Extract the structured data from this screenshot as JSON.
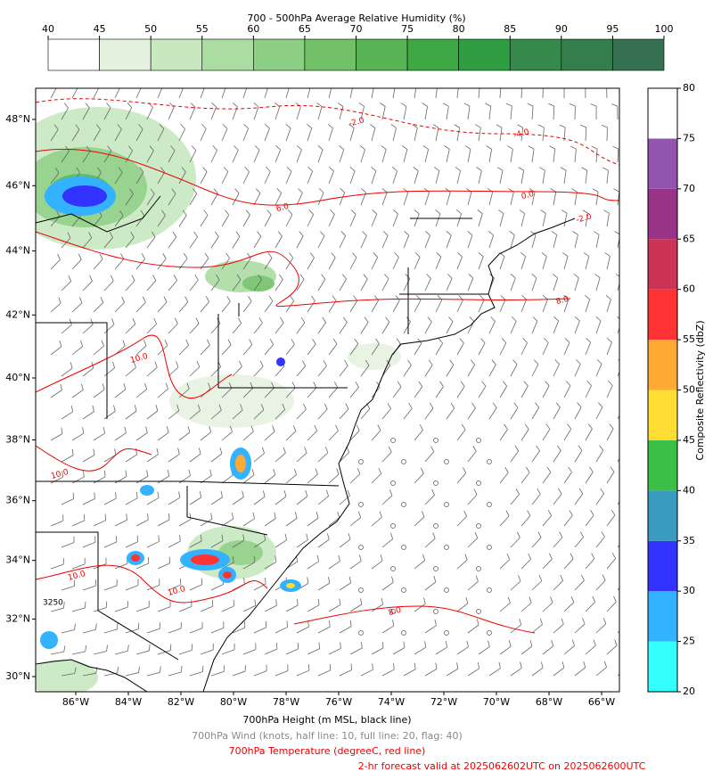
{
  "rh_colorbar": {
    "title": "700 - 500hPa Average Relative Humidity (%)",
    "ticks": [
      40,
      45,
      50,
      55,
      60,
      65,
      70,
      75,
      80,
      85,
      90,
      95,
      100
    ],
    "colors": [
      "#ffffff",
      "#e5f2e0",
      "#c8e8c0",
      "#abdca2",
      "#8dcf84",
      "#72c168",
      "#57b354",
      "#3ea944",
      "#2f9e42",
      "#35894a",
      "#337e4b",
      "#357050"
    ]
  },
  "reflectivity_colorbar": {
    "label": "Composite Reflectivity (dbZ)",
    "ticks": [
      20,
      25,
      30,
      35,
      40,
      45,
      50,
      55,
      60,
      65,
      70,
      75,
      80
    ],
    "colors": [
      "#33ffff",
      "#33b2ff",
      "#3333ff",
      "#3a9bc0",
      "#3bbf46",
      "#ffdd33",
      "#ffaa33",
      "#ff3333",
      "#cc3355",
      "#993388",
      "#9155b0",
      "#ffffff"
    ]
  },
  "map": {
    "lon_ticks": [
      {
        "value": -86,
        "label": "86°W"
      },
      {
        "value": -84,
        "label": "84°W"
      },
      {
        "value": -82,
        "label": "82°W"
      },
      {
        "value": -80,
        "label": "80°W"
      },
      {
        "value": -78,
        "label": "78°W"
      },
      {
        "value": -76,
        "label": "76°W"
      },
      {
        "value": -74,
        "label": "74°W"
      },
      {
        "value": -72,
        "label": "72°W"
      },
      {
        "value": -70,
        "label": "70°W"
      },
      {
        "value": -68,
        "label": "68°W"
      },
      {
        "value": -66,
        "label": "66°W"
      }
    ],
    "lat_ticks": [
      {
        "value": 30,
        "label": "30°N"
      },
      {
        "value": 32,
        "label": "32°N"
      },
      {
        "value": 34,
        "label": "34°N"
      },
      {
        "value": 36,
        "label": "36°N"
      },
      {
        "value": 38,
        "label": "38°N"
      },
      {
        "value": 40,
        "label": "40°N"
      },
      {
        "value": 42,
        "label": "42°N"
      },
      {
        "value": 44,
        "label": "44°N"
      },
      {
        "value": 46,
        "label": "46°N"
      },
      {
        "value": 48,
        "label": "48°N"
      }
    ],
    "contour_labels": [
      "-2.0",
      "-4.0",
      "0.0",
      "-2.0",
      "6.0",
      "8.0",
      "10.0",
      "10.0",
      "10.0",
      "10.0",
      "8.0"
    ],
    "height_label": "3250"
  },
  "footer": {
    "height": "700hPa Height (m MSL, black line)",
    "wind": "700hPa Wind (knots, half line: 10, full line: 20, flag: 40)",
    "temperature": "700hPa Temperature (degreeC, red line)",
    "valid": "2-hr forecast valid at 2025062602UTC on 2025062600UTC"
  }
}
